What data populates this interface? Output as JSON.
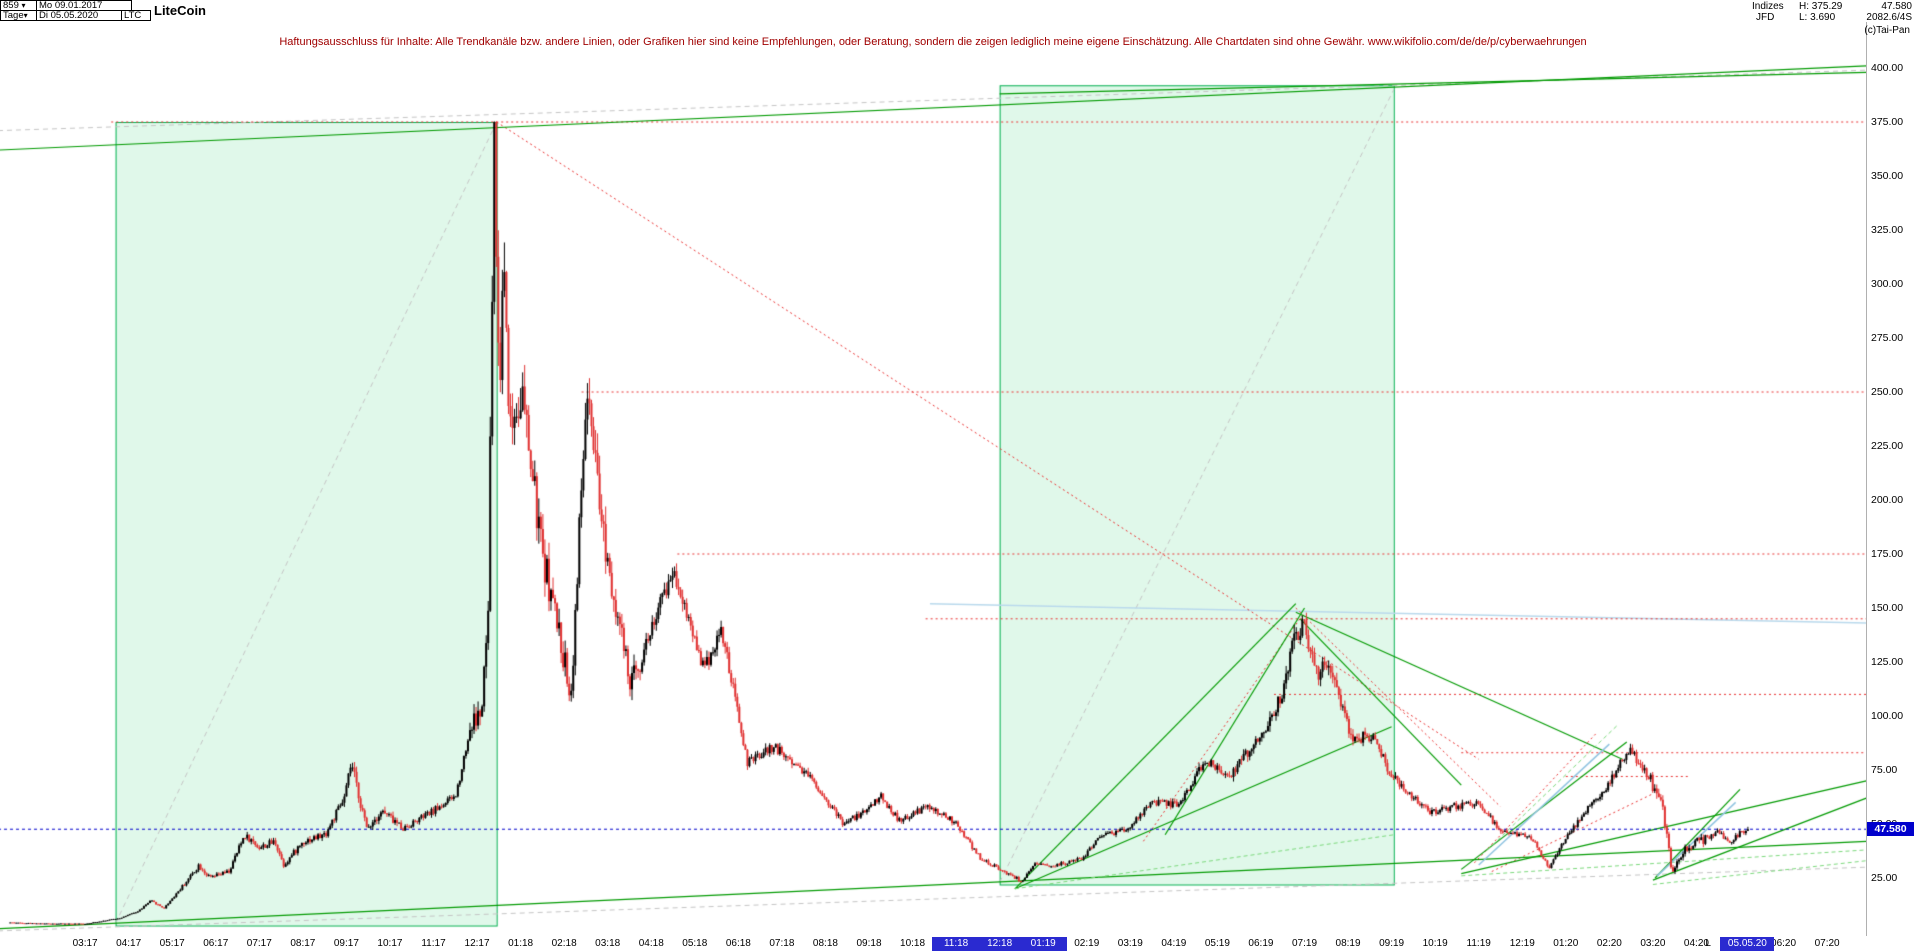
{
  "toolbar": {
    "bars_count": "859",
    "caret_icon": "▾",
    "start_date": "Mo 09.01.2017",
    "period": "Tage",
    "end_date": "Di 05.05.2020",
    "symbol": "LTC",
    "title": "LiteCoin",
    "category": "Indizes",
    "high": "H: 375.29",
    "provider": "JFD",
    "low": "L: 3.690",
    "last": "47.580",
    "stat": "2082.6/4S",
    "copyright": "(c)Tai-Pan"
  },
  "disclaimer": "Haftungsausschluss für Inhalte: Alle Trendkanäle bzw. andere Linien, oder Grafiken hier sind keine Empfehlungen, oder Beratung, sondern die zeigen lediglich meine eigene Einschätzung. Alle Chartdaten sind ohne Gewähr.  www.wikifolio.com/de/de/p/cyberwaehrungen",
  "y_axis": {
    "ticks": [
      "400.00",
      "375.00",
      "350.00",
      "325.00",
      "300.00",
      "275.00",
      "250.00",
      "225.00",
      "200.00",
      "175.00",
      "150.00",
      "125.00",
      "100.00",
      "75.00",
      "50.00",
      "25.00"
    ],
    "price_badge": "47.580"
  },
  "x_axis": {
    "labels": [
      "03:17",
      "04:17",
      "05:17",
      "06:17",
      "07:17",
      "08:17",
      "09:17",
      "10:17",
      "11:17",
      "12:17",
      "01:18",
      "02:18",
      "03:18",
      "04:18",
      "05:18",
      "06:18",
      "07:18",
      "08:18",
      "09:18",
      "10:18",
      "11:18",
      "12:18",
      "01:19",
      "02:19",
      "03:19",
      "04:19",
      "05:19",
      "06:19",
      "07:19",
      "08:19",
      "09:19",
      "10:19",
      "11:19",
      "12:19",
      "01:20",
      "02:20",
      "03:20",
      "04:20",
      "05:20",
      "06:20",
      "07:20"
    ],
    "highlighted_labels": [
      "11:18",
      "12:18",
      "01:19"
    ],
    "date_badge": "05.05.20",
    "low_marker": "L"
  },
  "chart_data": {
    "type": "candlestick",
    "symbol": "LTC",
    "title": "LiteCoin",
    "x_unit": "months since 2017-01-01",
    "x_range": [
      0,
      42.9
    ],
    "y_axis_range": [
      25,
      400
    ],
    "y_ticks": [
      400,
      375,
      350,
      325,
      300,
      275,
      250,
      225,
      200,
      175,
      150,
      125,
      100,
      75,
      50,
      25
    ],
    "bars": 859,
    "first_bar_t": 0.27,
    "last_bar_t": 40.17,
    "last_price": 47.58,
    "period_high": 375.29,
    "period_low": 3.69,
    "key_points": [
      [
        0.27,
        4.4
      ],
      [
        1.0,
        3.9
      ],
      [
        2.0,
        3.8
      ],
      [
        2.8,
        6.5
      ],
      [
        3.2,
        9.5
      ],
      [
        3.5,
        14.5
      ],
      [
        3.8,
        11
      ],
      [
        4.3,
        23
      ],
      [
        4.6,
        31
      ],
      [
        4.85,
        25
      ],
      [
        5.3,
        28
      ],
      [
        5.65,
        45
      ],
      [
        6.0,
        39
      ],
      [
        6.35,
        42
      ],
      [
        6.55,
        31
      ],
      [
        7.0,
        42
      ],
      [
        7.5,
        45
      ],
      [
        7.95,
        62
      ],
      [
        8.1,
        78
      ],
      [
        8.45,
        48
      ],
      [
        8.8,
        56
      ],
      [
        9.3,
        48
      ],
      [
        9.9,
        55
      ],
      [
        10.5,
        63
      ],
      [
        10.85,
        96
      ],
      [
        11.1,
        102
      ],
      [
        11.25,
        150
      ],
      [
        11.38,
        372
      ],
      [
        11.5,
        245
      ],
      [
        11.6,
        318
      ],
      [
        11.75,
        232
      ],
      [
        12.0,
        252
      ],
      [
        12.45,
        180
      ],
      [
        13.15,
        110
      ],
      [
        13.5,
        248
      ],
      [
        13.8,
        196
      ],
      [
        14.5,
        114
      ],
      [
        15.5,
        168
      ],
      [
        16.2,
        122
      ],
      [
        16.6,
        140
      ],
      [
        17.2,
        78
      ],
      [
        17.8,
        86
      ],
      [
        18.6,
        73
      ],
      [
        19.4,
        50
      ],
      [
        19.9,
        56
      ],
      [
        20.25,
        63
      ],
      [
        20.7,
        51
      ],
      [
        21.3,
        58
      ],
      [
        21.95,
        51
      ],
      [
        22.55,
        34
      ],
      [
        23.5,
        23.5
      ],
      [
        23.8,
        31
      ],
      [
        24.3,
        31
      ],
      [
        24.9,
        34
      ],
      [
        25.3,
        45
      ],
      [
        25.9,
        47
      ],
      [
        26.5,
        60
      ],
      [
        27.1,
        59
      ],
      [
        27.7,
        79
      ],
      [
        28.3,
        73
      ],
      [
        28.9,
        88
      ],
      [
        29.35,
        104
      ],
      [
        29.6,
        118
      ],
      [
        29.73,
        138
      ],
      [
        30.0,
        142
      ],
      [
        30.3,
        118
      ],
      [
        30.55,
        127
      ],
      [
        31.1,
        88
      ],
      [
        31.6,
        92
      ],
      [
        31.9,
        75
      ],
      [
        32.5,
        62
      ],
      [
        32.9,
        55
      ],
      [
        33.4,
        58
      ],
      [
        34.0,
        60
      ],
      [
        34.5,
        46
      ],
      [
        35.2,
        44
      ],
      [
        35.6,
        29.8
      ],
      [
        35.95,
        42
      ],
      [
        36.5,
        58
      ],
      [
        36.95,
        68
      ],
      [
        37.25,
        78
      ],
      [
        37.47,
        84.5
      ],
      [
        37.9,
        71
      ],
      [
        38.2,
        58
      ],
      [
        38.33,
        44
      ],
      [
        38.42,
        27
      ],
      [
        38.55,
        34
      ],
      [
        38.8,
        40
      ],
      [
        39.2,
        43
      ],
      [
        39.5,
        47
      ],
      [
        39.7,
        41
      ],
      [
        40.0,
        46
      ],
      [
        40.17,
        47.58
      ]
    ],
    "colors": {
      "up": "#000000",
      "down": "#e03232",
      "box_fill": "rgba(0,200,80,0.12)",
      "box_border": "#00b050",
      "red": "#e83030",
      "gray": "#c4c4c4",
      "green": "#009a00",
      "green_dash": "#7bd87b",
      "cyan": "#8fc3e0",
      "lightblue": "#b9d9ec",
      "blue": "#0000cc"
    },
    "overlays": {
      "green_boxes": [
        {
          "t": [
            2.7,
            11.45
          ],
          "p": [
            3,
            375
          ]
        },
        {
          "t": [
            23.0,
            32.05
          ],
          "p": [
            22,
            392
          ]
        }
      ],
      "red_dotted_h": [
        {
          "p": 375,
          "t1": 2.6,
          "t2": 42.9
        },
        {
          "p": 250,
          "t1": 13.4,
          "t2": 42.9
        },
        {
          "p": 175,
          "t1": 15.6,
          "t2": 42.9
        },
        {
          "p": 145,
          "t1": 21.3,
          "t2": 42.9
        },
        {
          "p": 110,
          "t1": 29.3,
          "t2": 42.9
        },
        {
          "p": 83,
          "t1": 33.6,
          "t2": 42.9
        },
        {
          "p": 72,
          "t1": 36.0,
          "t2": 38.8
        }
      ],
      "red_dotted_lines": [
        [
          11.45,
          375,
          34.0,
          80
        ],
        [
          26.3,
          42,
          30.0,
          148
        ],
        [
          29.8,
          150,
          34.5,
          58
        ],
        [
          33.9,
          32,
          36.7,
          92
        ],
        [
          34.3,
          28,
          38.0,
          64
        ]
      ],
      "gray_dashed_lines": [
        [
          2.7,
          4,
          11.45,
          375
        ],
        [
          23.0,
          23,
          32.05,
          390
        ],
        [
          0,
          371,
          42.9,
          399
        ],
        [
          0,
          0.5,
          42.9,
          30
        ]
      ],
      "green_lines": [
        [
          0,
          362,
          42.9,
          401
        ],
        [
          23.0,
          388,
          42.9,
          398
        ],
        [
          0,
          1.5,
          42.9,
          42
        ],
        [
          23.35,
          20,
          29.8,
          152
        ],
        [
          23.35,
          20,
          32.0,
          95
        ],
        [
          26.8,
          45,
          30.0,
          150
        ],
        [
          29.8,
          148,
          37.3,
          80
        ],
        [
          29.9,
          145,
          33.6,
          68
        ],
        [
          33.6,
          29,
          37.4,
          88
        ],
        [
          33.6,
          27,
          42.9,
          70
        ],
        [
          38.0,
          24,
          42.9,
          62
        ],
        [
          38.05,
          25,
          40.0,
          66
        ]
      ],
      "green_dashed_lines": [
        [
          23.35,
          20,
          32.05,
          45
        ],
        [
          33.6,
          26,
          42.9,
          38
        ],
        [
          38.0,
          22,
          42.9,
          33
        ],
        [
          34.2,
          38,
          37.2,
          96
        ]
      ],
      "cyan_lines": [
        [
          34.0,
          31,
          37.0,
          87
        ],
        [
          38.1,
          26,
          39.9,
          60
        ]
      ],
      "light_blue_h": [
        [
          21.4,
          152,
          42.9,
          143
        ]
      ],
      "price_line": {
        "p": 47.58
      }
    }
  }
}
